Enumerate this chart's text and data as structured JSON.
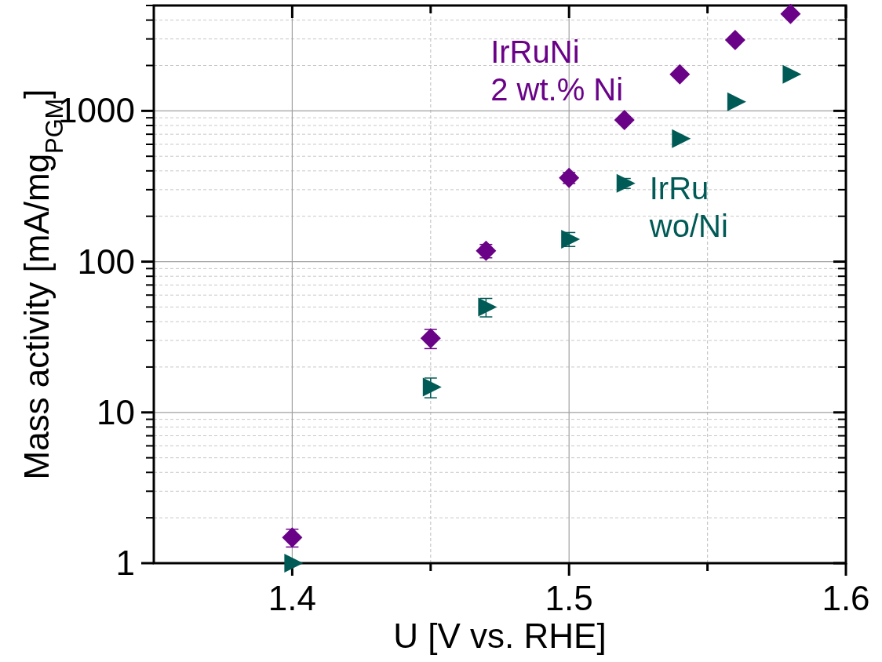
{
  "chart_data": {
    "type": "scatter",
    "xlabel": "U [V vs. RHE]",
    "ylabel": "Mass activity [mA/mg$_{PGM}$]",
    "xlim": [
      1.35,
      1.6
    ],
    "xticks": [
      1.4,
      {
        "value": 1.45,
        "label": null
      },
      1.5,
      {
        "value": 1.55,
        "label": null
      },
      1.6
    ],
    "ylim": [
      1,
      5000
    ],
    "yticks": [
      1,
      10,
      100,
      1000
    ],
    "log": "y",
    "grid": true,
    "series": [
      {
        "name": "IrRuNi 2 wt.% Ni",
        "color": "#6a0288",
        "marker": "diamond",
        "x": [
          1.4,
          1.45,
          1.47,
          1.5,
          1.52,
          1.54,
          1.56,
          1.58
        ],
        "values": [
          1.48,
          31,
          118,
          360,
          870,
          1750,
          2950,
          4400
        ],
        "errors": [
          0.2,
          4.5,
          12,
          30,
          null,
          null,
          null,
          null
        ]
      },
      {
        "name": "IrRu wo/Ni",
        "color": "#005a55",
        "marker": "triangle",
        "x": [
          1.4,
          1.45,
          1.47,
          1.5,
          1.52,
          1.54,
          1.56,
          1.58
        ],
        "values": [
          1,
          14.7,
          50,
          141,
          331,
          654,
          1150,
          1750
        ],
        "errors": [
          null,
          2.2,
          7,
          15,
          25,
          null,
          null,
          null
        ]
      }
    ]
  }
}
